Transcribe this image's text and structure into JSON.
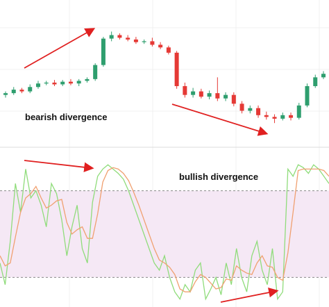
{
  "chart_data": [
    {
      "type": "candlestick",
      "annotation": "bearish divergence",
      "open": [
        70,
        72,
        76,
        74,
        79,
        83,
        84,
        82,
        85,
        83,
        86,
        88,
        104,
        134,
        138,
        135,
        133,
        130,
        131,
        127,
        124,
        118,
        80,
        70,
        74,
        68,
        72,
        66,
        70,
        60,
        52,
        55,
        47,
        45,
        43,
        47,
        44,
        58,
        80,
        90
      ],
      "high": [
        74,
        79,
        78,
        82,
        86,
        86,
        87,
        87,
        88,
        88,
        90,
        106,
        136,
        142,
        140,
        138,
        136,
        133,
        135,
        130,
        126,
        120,
        84,
        78,
        77,
        75,
        90,
        73,
        73,
        63,
        58,
        58,
        51,
        48,
        50,
        50,
        61,
        83,
        93,
        97
      ],
      "low": [
        67,
        70,
        72,
        72,
        77,
        81,
        80,
        80,
        81,
        80,
        84,
        86,
        102,
        131,
        133,
        131,
        128,
        128,
        125,
        122,
        116,
        77,
        67,
        67,
        66,
        65,
        63,
        63,
        57,
        49,
        49,
        44,
        42,
        38,
        41,
        41,
        42,
        56,
        78,
        88
      ],
      "close": [
        72,
        76,
        74,
        79,
        83,
        84,
        82,
        85,
        83,
        86,
        88,
        104,
        134,
        138,
        135,
        133,
        130,
        131,
        127,
        124,
        118,
        80,
        70,
        74,
        68,
        72,
        66,
        70,
        60,
        52,
        55,
        47,
        45,
        43,
        47,
        44,
        58,
        80,
        90,
        94
      ],
      "up_color": "#2e9e6e",
      "down_color": "#e53935",
      "ylim": [
        20,
        170
      ]
    },
    {
      "type": "line",
      "annotation": "bullish divergence",
      "series": [
        {
          "color": "#8fdc7a",
          "values": [
            30,
            15,
            45,
            85,
            65,
            95,
            75,
            80,
            70,
            55,
            85,
            78,
            60,
            35,
            55,
            70,
            40,
            30,
            72,
            90,
            95,
            98,
            95,
            92,
            88,
            80,
            70,
            60,
            50,
            40,
            30,
            25,
            35,
            20,
            10,
            5,
            15,
            10,
            25,
            30,
            5,
            12,
            20,
            8,
            30,
            15,
            40,
            20,
            10,
            35,
            45,
            25,
            15,
            40,
            5,
            10,
            95,
            90,
            98,
            96,
            92,
            98,
            95,
            90,
            85
          ]
        },
        {
          "color": "#f0a070",
          "values": [
            35,
            28,
            30,
            48,
            65,
            75,
            78,
            83,
            75,
            68,
            70,
            73,
            74,
            58,
            50,
            53,
            55,
            47,
            47,
            64,
            86,
            94,
            96,
            95,
            92,
            87,
            79,
            70,
            60,
            50,
            40,
            32,
            30,
            27,
            22,
            12,
            10,
            10,
            17,
            22,
            20,
            16,
            12,
            13,
            19,
            18,
            28,
            25,
            23,
            22,
            30,
            35,
            28,
            27,
            20,
            18,
            37,
            65,
            94,
            95,
            95,
            95,
            95,
            94,
            90
          ]
        }
      ],
      "bands": [
        20,
        80
      ],
      "band_color": "#f5e8f5",
      "ylim": [
        0,
        100
      ]
    }
  ]
}
